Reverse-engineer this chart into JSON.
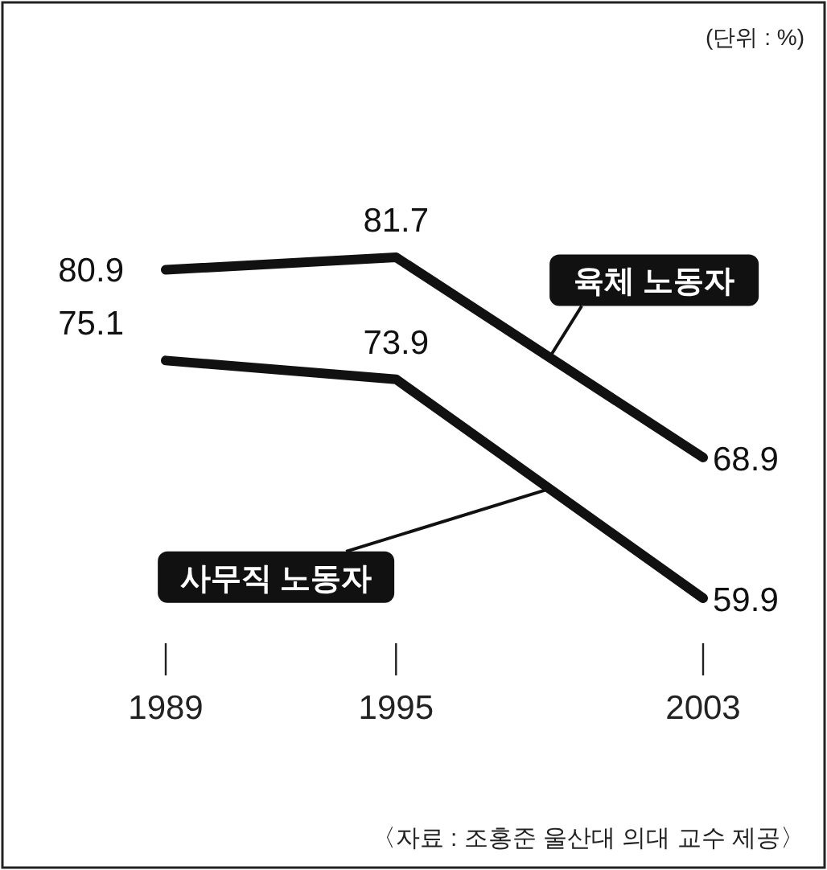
{
  "chart_data": {
    "type": "line",
    "x": [
      1989,
      1995,
      2003
    ],
    "xlim": [
      1989,
      2003
    ],
    "xticks": [
      1989,
      1995,
      2003
    ],
    "tick_labels": "x",
    "data_labels": true,
    "grid": false,
    "marker": "none",
    "line_style": "solid",
    "series": [
      {
        "name": "육체 노동자",
        "color": "#111111",
        "values": [
          80.9,
          81.7,
          68.9
        ]
      },
      {
        "name": "사무직 노동자",
        "color": "#111111",
        "values": [
          75.1,
          73.9,
          59.9
        ]
      }
    ],
    "annotations": [
      "(단위 : %)",
      "〈자료 : 조홍준 울산대 의대 교수 제공〉"
    ]
  }
}
